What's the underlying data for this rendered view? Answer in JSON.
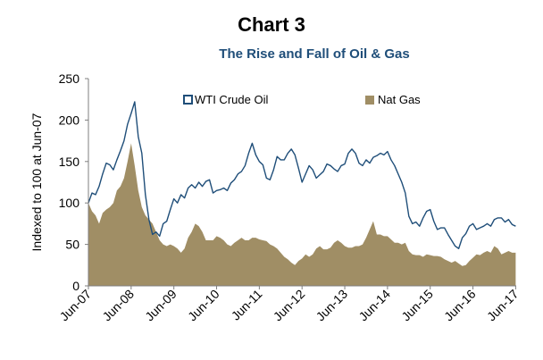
{
  "chart_data": {
    "type": "line-area",
    "title": "Chart 3",
    "subtitle": "The Rise and Fall of Oil & Gas",
    "ylabel": "Indexed to 100 at Jun-07",
    "xlabel": "",
    "ylim": [
      0,
      250
    ],
    "yticks": [
      0,
      50,
      100,
      150,
      200,
      250
    ],
    "xlim": [
      "2007-06",
      "2017-06"
    ],
    "xticks": [
      "Jun-07",
      "Jun-08",
      "Jun-09",
      "Jun-10",
      "Jun-11",
      "Jun-12",
      "Jun-13",
      "Jun-14",
      "Jun-15",
      "Jun-16",
      "Jun-17"
    ],
    "grid": false,
    "legend_position": "top",
    "series": [
      {
        "name": "WTI Crude Oil",
        "style": "line",
        "color": "#1f4e79",
        "points": [
          [
            "2007-06",
            100
          ],
          [
            "2007-07",
            112
          ],
          [
            "2007-08",
            110
          ],
          [
            "2007-09",
            120
          ],
          [
            "2007-10",
            135
          ],
          [
            "2007-11",
            148
          ],
          [
            "2007-12",
            146
          ],
          [
            "2008-01",
            140
          ],
          [
            "2008-02",
            152
          ],
          [
            "2008-03",
            163
          ],
          [
            "2008-04",
            175
          ],
          [
            "2008-05",
            195
          ],
          [
            "2008-06",
            208
          ],
          [
            "2008-07",
            222
          ],
          [
            "2008-08",
            180
          ],
          [
            "2008-09",
            160
          ],
          [
            "2008-10",
            110
          ],
          [
            "2008-11",
            80
          ],
          [
            "2008-12",
            62
          ],
          [
            "2009-01",
            65
          ],
          [
            "2009-02",
            60
          ],
          [
            "2009-03",
            75
          ],
          [
            "2009-04",
            78
          ],
          [
            "2009-05",
            92
          ],
          [
            "2009-06",
            105
          ],
          [
            "2009-07",
            100
          ],
          [
            "2009-08",
            110
          ],
          [
            "2009-09",
            106
          ],
          [
            "2009-10",
            118
          ],
          [
            "2009-11",
            122
          ],
          [
            "2009-12",
            118
          ],
          [
            "2010-01",
            125
          ],
          [
            "2010-02",
            120
          ],
          [
            "2010-03",
            126
          ],
          [
            "2010-04",
            128
          ],
          [
            "2010-05",
            112
          ],
          [
            "2010-06",
            115
          ],
          [
            "2010-07",
            116
          ],
          [
            "2010-08",
            118
          ],
          [
            "2010-09",
            115
          ],
          [
            "2010-10",
            124
          ],
          [
            "2010-11",
            128
          ],
          [
            "2010-12",
            135
          ],
          [
            "2011-01",
            138
          ],
          [
            "2011-02",
            145
          ],
          [
            "2011-03",
            160
          ],
          [
            "2011-04",
            172
          ],
          [
            "2011-05",
            158
          ],
          [
            "2011-06",
            150
          ],
          [
            "2011-07",
            146
          ],
          [
            "2011-08",
            130
          ],
          [
            "2011-09",
            128
          ],
          [
            "2011-10",
            140
          ],
          [
            "2011-11",
            156
          ],
          [
            "2011-12",
            152
          ],
          [
            "2012-01",
            152
          ],
          [
            "2012-02",
            160
          ],
          [
            "2012-03",
            165
          ],
          [
            "2012-04",
            158
          ],
          [
            "2012-05",
            142
          ],
          [
            "2012-06",
            125
          ],
          [
            "2012-07",
            135
          ],
          [
            "2012-08",
            145
          ],
          [
            "2012-09",
            140
          ],
          [
            "2012-10",
            130
          ],
          [
            "2012-11",
            134
          ],
          [
            "2012-12",
            138
          ],
          [
            "2013-01",
            147
          ],
          [
            "2013-02",
            145
          ],
          [
            "2013-03",
            141
          ],
          [
            "2013-04",
            138
          ],
          [
            "2013-05",
            145
          ],
          [
            "2013-06",
            147
          ],
          [
            "2013-07",
            160
          ],
          [
            "2013-08",
            165
          ],
          [
            "2013-09",
            160
          ],
          [
            "2013-10",
            148
          ],
          [
            "2013-11",
            145
          ],
          [
            "2013-12",
            152
          ],
          [
            "2014-01",
            148
          ],
          [
            "2014-02",
            155
          ],
          [
            "2014-03",
            157
          ],
          [
            "2014-04",
            160
          ],
          [
            "2014-05",
            158
          ],
          [
            "2014-06",
            162
          ],
          [
            "2014-07",
            152
          ],
          [
            "2014-08",
            145
          ],
          [
            "2014-09",
            135
          ],
          [
            "2014-10",
            125
          ],
          [
            "2014-11",
            112
          ],
          [
            "2014-12",
            84
          ],
          [
            "2015-01",
            75
          ],
          [
            "2015-02",
            77
          ],
          [
            "2015-03",
            72
          ],
          [
            "2015-04",
            82
          ],
          [
            "2015-05",
            90
          ],
          [
            "2015-06",
            92
          ],
          [
            "2015-07",
            78
          ],
          [
            "2015-08",
            68
          ],
          [
            "2015-09",
            70
          ],
          [
            "2015-10",
            70
          ],
          [
            "2015-11",
            62
          ],
          [
            "2015-12",
            55
          ],
          [
            "2016-01",
            48
          ],
          [
            "2016-02",
            45
          ],
          [
            "2016-03",
            58
          ],
          [
            "2016-04",
            63
          ],
          [
            "2016-05",
            72
          ],
          [
            "2016-06",
            75
          ],
          [
            "2016-07",
            68
          ],
          [
            "2016-08",
            70
          ],
          [
            "2016-09",
            72
          ],
          [
            "2016-10",
            75
          ],
          [
            "2016-11",
            72
          ],
          [
            "2016-12",
            80
          ],
          [
            "2017-01",
            82
          ],
          [
            "2017-02",
            82
          ],
          [
            "2017-03",
            77
          ],
          [
            "2017-04",
            80
          ],
          [
            "2017-05",
            74
          ],
          [
            "2017-06",
            72
          ]
        ]
      },
      {
        "name": "Nat Gas",
        "style": "area",
        "color": "#a08e65",
        "points": [
          [
            "2007-06",
            100
          ],
          [
            "2007-07",
            90
          ],
          [
            "2007-08",
            85
          ],
          [
            "2007-09",
            75
          ],
          [
            "2007-10",
            88
          ],
          [
            "2007-11",
            92
          ],
          [
            "2007-12",
            95
          ],
          [
            "2008-01",
            100
          ],
          [
            "2008-02",
            115
          ],
          [
            "2008-03",
            120
          ],
          [
            "2008-04",
            130
          ],
          [
            "2008-05",
            150
          ],
          [
            "2008-06",
            172
          ],
          [
            "2008-07",
            145
          ],
          [
            "2008-08",
            115
          ],
          [
            "2008-09",
            95
          ],
          [
            "2008-10",
            85
          ],
          [
            "2008-11",
            80
          ],
          [
            "2008-12",
            75
          ],
          [
            "2009-01",
            65
          ],
          [
            "2009-02",
            55
          ],
          [
            "2009-03",
            50
          ],
          [
            "2009-04",
            48
          ],
          [
            "2009-05",
            50
          ],
          [
            "2009-06",
            48
          ],
          [
            "2009-07",
            45
          ],
          [
            "2009-08",
            40
          ],
          [
            "2009-09",
            45
          ],
          [
            "2009-10",
            58
          ],
          [
            "2009-11",
            65
          ],
          [
            "2009-12",
            75
          ],
          [
            "2010-01",
            72
          ],
          [
            "2010-02",
            65
          ],
          [
            "2010-03",
            55
          ],
          [
            "2010-04",
            55
          ],
          [
            "2010-05",
            55
          ],
          [
            "2010-06",
            60
          ],
          [
            "2010-07",
            58
          ],
          [
            "2010-08",
            55
          ],
          [
            "2010-09",
            50
          ],
          [
            "2010-10",
            48
          ],
          [
            "2010-11",
            52
          ],
          [
            "2010-12",
            55
          ],
          [
            "2011-01",
            58
          ],
          [
            "2011-02",
            55
          ],
          [
            "2011-03",
            55
          ],
          [
            "2011-04",
            58
          ],
          [
            "2011-05",
            58
          ],
          [
            "2011-06",
            56
          ],
          [
            "2011-07",
            55
          ],
          [
            "2011-08",
            54
          ],
          [
            "2011-09",
            50
          ],
          [
            "2011-10",
            48
          ],
          [
            "2011-11",
            45
          ],
          [
            "2011-12",
            40
          ],
          [
            "2012-01",
            35
          ],
          [
            "2012-02",
            32
          ],
          [
            "2012-03",
            28
          ],
          [
            "2012-04",
            25
          ],
          [
            "2012-05",
            30
          ],
          [
            "2012-06",
            33
          ],
          [
            "2012-07",
            38
          ],
          [
            "2012-08",
            35
          ],
          [
            "2012-09",
            38
          ],
          [
            "2012-10",
            45
          ],
          [
            "2012-11",
            48
          ],
          [
            "2012-12",
            44
          ],
          [
            "2013-01",
            44
          ],
          [
            "2013-02",
            46
          ],
          [
            "2013-03",
            52
          ],
          [
            "2013-04",
            55
          ],
          [
            "2013-05",
            52
          ],
          [
            "2013-06",
            48
          ],
          [
            "2013-07",
            46
          ],
          [
            "2013-08",
            46
          ],
          [
            "2013-09",
            48
          ],
          [
            "2013-10",
            48
          ],
          [
            "2013-11",
            50
          ],
          [
            "2013-12",
            58
          ],
          [
            "2014-01",
            68
          ],
          [
            "2014-02",
            78
          ],
          [
            "2014-03",
            62
          ],
          [
            "2014-04",
            62
          ],
          [
            "2014-05",
            60
          ],
          [
            "2014-06",
            60
          ],
          [
            "2014-07",
            56
          ],
          [
            "2014-08",
            52
          ],
          [
            "2014-09",
            52
          ],
          [
            "2014-10",
            50
          ],
          [
            "2014-11",
            52
          ],
          [
            "2014-12",
            42
          ],
          [
            "2015-01",
            38
          ],
          [
            "2015-02",
            37
          ],
          [
            "2015-03",
            37
          ],
          [
            "2015-04",
            35
          ],
          [
            "2015-05",
            38
          ],
          [
            "2015-06",
            37
          ],
          [
            "2015-07",
            36
          ],
          [
            "2015-08",
            36
          ],
          [
            "2015-09",
            35
          ],
          [
            "2015-10",
            32
          ],
          [
            "2015-11",
            30
          ],
          [
            "2015-12",
            28
          ],
          [
            "2016-01",
            30
          ],
          [
            "2016-02",
            27
          ],
          [
            "2016-03",
            24
          ],
          [
            "2016-04",
            25
          ],
          [
            "2016-05",
            30
          ],
          [
            "2016-06",
            34
          ],
          [
            "2016-07",
            38
          ],
          [
            "2016-08",
            37
          ],
          [
            "2016-09",
            40
          ],
          [
            "2016-10",
            42
          ],
          [
            "2016-11",
            40
          ],
          [
            "2016-12",
            48
          ],
          [
            "2017-01",
            45
          ],
          [
            "2017-02",
            38
          ],
          [
            "2017-03",
            40
          ],
          [
            "2017-04",
            42
          ],
          [
            "2017-05",
            40
          ],
          [
            "2017-06",
            40
          ]
        ]
      }
    ]
  }
}
